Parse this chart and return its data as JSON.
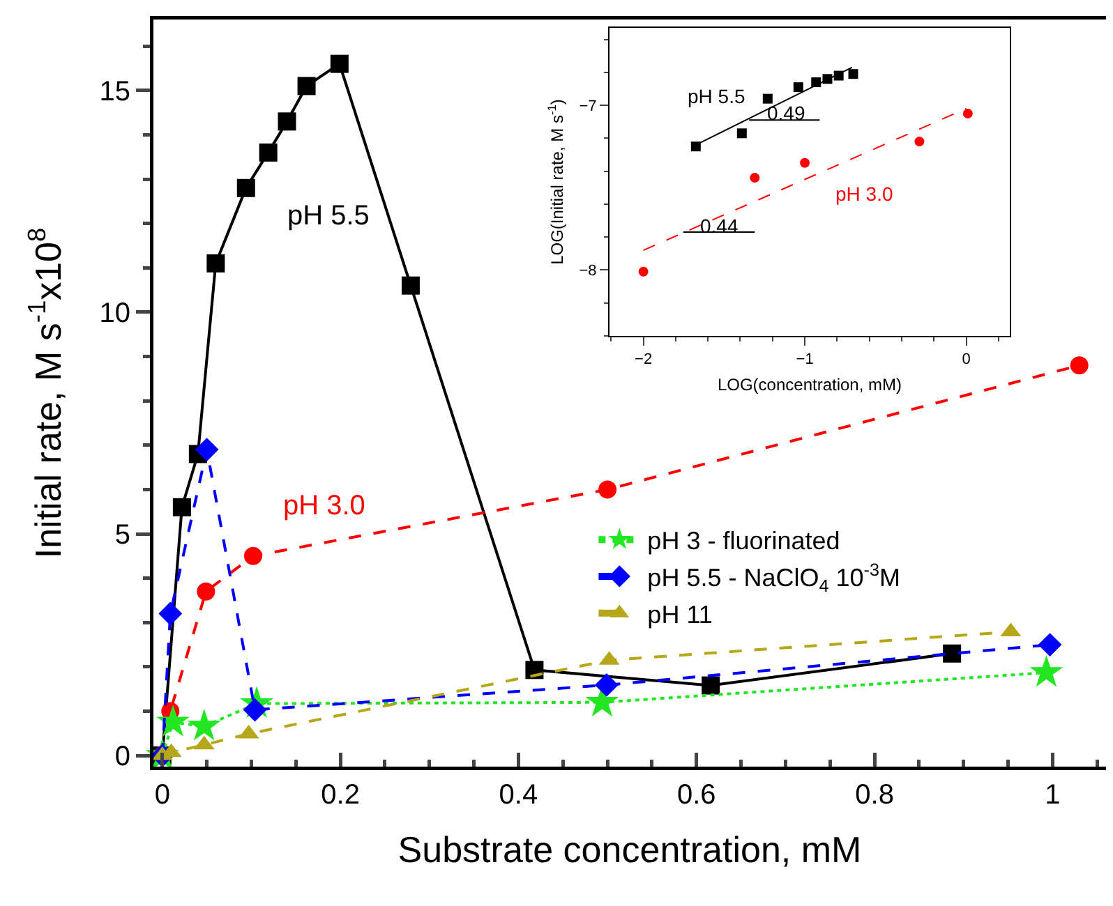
{
  "chart_data": [
    {
      "type": "line",
      "xlabel": "Substrate concentration, mM",
      "ylabel": "Initial rate, M s$^{-1}$x10$^{8}$",
      "xlim": [
        -0.01,
        1.06
      ],
      "xticks": [
        0,
        0.2,
        0.4,
        0.6,
        0.8,
        1
      ],
      "ylim": [
        -0.25,
        16.6
      ],
      "yticks": [
        0,
        5,
        10,
        15
      ],
      "grid": false,
      "legend": "right",
      "series": [
        {
          "name": "pH 5.5",
          "color": "#000000",
          "marker": "square",
          "line_style": "solid",
          "x": [
            0,
            0.022,
            0.04,
            0.06,
            0.094,
            0.119,
            0.14,
            0.162,
            0.199,
            0.279,
            0.418,
            0.616,
            0.887
          ],
          "values": [
            0,
            5.6,
            6.8,
            11.1,
            12.8,
            13.6,
            14.3,
            15.1,
            15.6,
            10.6,
            1.93,
            1.58,
            2.3
          ]
        },
        {
          "name": "pH 3.0",
          "color": "#ff0000",
          "marker": "circle",
          "line_style": "dashed",
          "x": [
            0,
            0.009,
            0.049,
            0.102,
            0.5,
            1.03
          ],
          "values": [
            0,
            1.0,
            3.7,
            4.5,
            6.0,
            8.8
          ]
        },
        {
          "name": "pH 3 - fluorinated",
          "color": "#22e622",
          "marker": "star",
          "line_style": "dotted",
          "x": [
            0,
            0.012,
            0.047,
            0.106,
            0.494,
            0.993
          ],
          "values": [
            0,
            0.75,
            0.66,
            1.17,
            1.2,
            1.87
          ]
        },
        {
          "name": "pH 5.5 - NaClO$_{4}$ 10$^{-3}$M",
          "color": "#0000ff",
          "marker": "diamond",
          "line_style": "dashed",
          "x": [
            0,
            0.009,
            0.05,
            0.104,
            0.499,
            0.997
          ],
          "values": [
            0,
            3.2,
            6.9,
            1.03,
            1.59,
            2.5
          ]
        },
        {
          "name": "pH 11",
          "color": "#b5a61a",
          "marker": "triangle",
          "line_style": "dashed",
          "x": [
            0,
            0.01,
            0.047,
            0.097,
            0.502,
            0.953
          ],
          "values": [
            0,
            0.07,
            0.24,
            0.49,
            2.15,
            2.79
          ]
        }
      ]
    },
    {
      "type": "scatter",
      "xlabel": "LOG(concentration, mM)",
      "ylabel": "LOG(Initial rate, M s$^{-1}$)",
      "xlim": [
        -2.21,
        0.27
      ],
      "xticks": [
        -2,
        -1,
        0
      ],
      "ylim": [
        -8.4,
        -6.53
      ],
      "yticks": [
        -8,
        -7
      ],
      "grid": false,
      "series": [
        {
          "name": "pH 5.5",
          "color": "#000000",
          "marker": "square",
          "x": [
            -1.675,
            -1.39,
            -1.23,
            -1.04,
            -0.93,
            -0.86,
            -0.79,
            -0.7
          ],
          "values": [
            -7.25,
            -7.17,
            -6.96,
            -6.89,
            -6.86,
            -6.84,
            -6.82,
            -6.81
          ]
        },
        {
          "name": "pH 3.0",
          "color": "#ff0000",
          "marker": "circle",
          "x": [
            -2.0,
            -1.31,
            -1.0,
            -0.29,
            0.01
          ],
          "values": [
            -8.01,
            -7.44,
            -7.35,
            -7.22,
            -7.05
          ]
        },
        {
          "type": "line",
          "color": "#000000",
          "line_style": "solid",
          "x": [
            -1.675,
            -0.707
          ],
          "values": [
            -7.24,
            -6.77
          ]
        },
        {
          "type": "line",
          "color": "#ff0000",
          "line_style": "dashed",
          "x": [
            -2.0,
            0
          ],
          "values": [
            -7.88,
            -7.02
          ]
        },
        {
          "type": "line",
          "color": "#000000",
          "line_style": "solid",
          "x": [
            -1.345,
            -0.908
          ],
          "values": [
            -7.09,
            -7.09
          ]
        },
        {
          "type": "line",
          "color": "#000000",
          "line_style": "solid",
          "x": [
            -1.753,
            -1.31
          ],
          "values": [
            -7.77,
            -7.77
          ]
        }
      ],
      "annotations": [
        {
          "text": "0.49",
          "x": -1.12,
          "y": -7.05
        },
        {
          "text": "0.44",
          "x": -1.53,
          "y": -7.73
        }
      ]
    }
  ]
}
